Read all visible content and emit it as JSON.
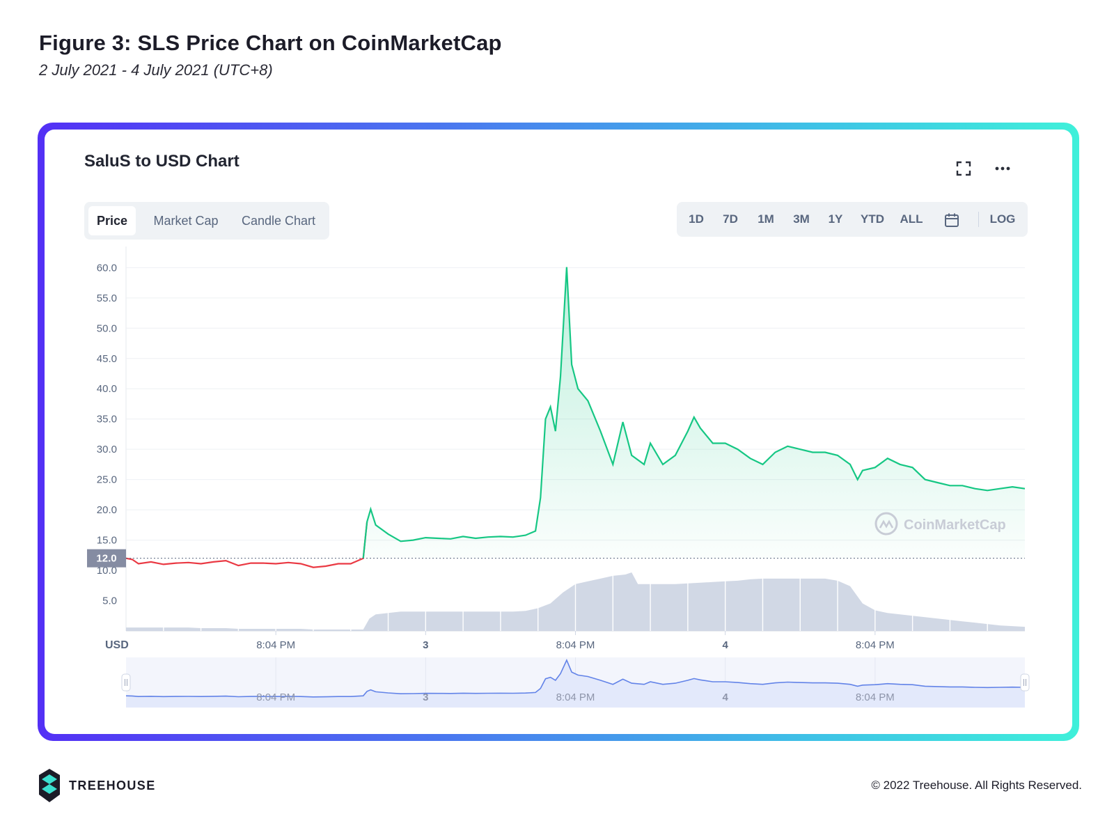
{
  "figure": {
    "title": "Figure 3: SLS Price Chart on CoinMarketCap",
    "subtitle": "2 July 2021 - 4 July 2021 (UTC+8)"
  },
  "card": {
    "title": "SaluS to USD Chart",
    "fullscreen_icon": "fullscreen-icon",
    "more_icon": "more-horizontal-icon"
  },
  "tabs": [
    {
      "label": "Price",
      "active": true
    },
    {
      "label": "Market Cap",
      "active": false
    },
    {
      "label": "Candle Chart",
      "active": false
    }
  ],
  "ranges": [
    "1D",
    "7D",
    "1M",
    "3M",
    "1Y",
    "YTD",
    "ALL"
  ],
  "calendar_icon": "calendar-icon",
  "log_label": "LOG",
  "watermark": "CoinMarketCap",
  "current_price_label": "12.0",
  "unit_label": "USD",
  "colors": {
    "up": "#16c784",
    "down": "#ea3943",
    "volume": "#cfd6e4",
    "navigator_line": "#6283e8",
    "navigator_fill": "#e3e9fb"
  },
  "chart_data": {
    "type": "line",
    "title": "SaluS to USD Chart",
    "ylabel": "USD",
    "ylim": [
      0,
      62
    ],
    "yticks": [
      5.0,
      10.0,
      15.0,
      20.0,
      25.0,
      30.0,
      35.0,
      40.0,
      45.0,
      50.0,
      55.0,
      60.0
    ],
    "xlim": [
      0,
      72
    ],
    "xticks": [
      {
        "x": 12,
        "label": "8:04 PM"
      },
      {
        "x": 24,
        "label": "3"
      },
      {
        "x": 36,
        "label": "8:04 PM"
      },
      {
        "x": 48,
        "label": "4"
      },
      {
        "x": 60,
        "label": "8:04 PM"
      }
    ],
    "reference_price": 12.0,
    "series": [
      {
        "values": [
          [
            0,
            12.0
          ],
          [
            0.5,
            11.8
          ],
          [
            1,
            11.1
          ],
          [
            2,
            11.4
          ],
          [
            3,
            11.0
          ],
          [
            4,
            11.2
          ],
          [
            5,
            11.3
          ],
          [
            6,
            11.1
          ],
          [
            7,
            11.4
          ],
          [
            8,
            11.6
          ],
          [
            9,
            10.8
          ],
          [
            10,
            11.2
          ],
          [
            11,
            11.2
          ],
          [
            12,
            11.1
          ],
          [
            13,
            11.3
          ],
          [
            14,
            11.1
          ],
          [
            15,
            10.5
          ],
          [
            16,
            10.7
          ],
          [
            17,
            11.1
          ],
          [
            18,
            11.1
          ],
          [
            19,
            12.0
          ],
          [
            19.3,
            18.0
          ],
          [
            19.6,
            20.1
          ],
          [
            20,
            17.5
          ],
          [
            21,
            16.0
          ],
          [
            22,
            14.8
          ],
          [
            23,
            15.0
          ],
          [
            24,
            15.4
          ],
          [
            25,
            15.3
          ],
          [
            26,
            15.2
          ],
          [
            27,
            15.6
          ],
          [
            28,
            15.3
          ],
          [
            29,
            15.5
          ],
          [
            30,
            15.6
          ],
          [
            31,
            15.5
          ],
          [
            32,
            15.8
          ],
          [
            32.8,
            16.5
          ],
          [
            33.2,
            22.0
          ],
          [
            33.6,
            35.0
          ],
          [
            34,
            37.0
          ],
          [
            34.4,
            33.0
          ],
          [
            34.8,
            42.0
          ],
          [
            35.3,
            60.1
          ],
          [
            35.7,
            44.0
          ],
          [
            36.2,
            40.0
          ],
          [
            37,
            38.0
          ],
          [
            38,
            33.0
          ],
          [
            39,
            27.5
          ],
          [
            39.8,
            34.5
          ],
          [
            40.5,
            29.0
          ],
          [
            41.5,
            27.5
          ],
          [
            42,
            31.0
          ],
          [
            43,
            27.5
          ],
          [
            44,
            29.0
          ],
          [
            45,
            33.0
          ],
          [
            45.5,
            35.3
          ],
          [
            46,
            33.5
          ],
          [
            47,
            31.0
          ],
          [
            48,
            31.0
          ],
          [
            49,
            30.0
          ],
          [
            50,
            28.5
          ],
          [
            51,
            27.5
          ],
          [
            52,
            29.5
          ],
          [
            53,
            30.5
          ],
          [
            54,
            30.0
          ],
          [
            55,
            29.5
          ],
          [
            56,
            29.5
          ],
          [
            57,
            29.0
          ],
          [
            58,
            27.5
          ],
          [
            58.6,
            25.0
          ],
          [
            59,
            26.5
          ],
          [
            60,
            27.0
          ],
          [
            61,
            28.5
          ],
          [
            62,
            27.5
          ],
          [
            63,
            27.0
          ],
          [
            64,
            25.0
          ],
          [
            65,
            24.5
          ],
          [
            66,
            24.0
          ],
          [
            67,
            24.0
          ],
          [
            68,
            23.5
          ],
          [
            69,
            23.2
          ],
          [
            70,
            23.5
          ],
          [
            71,
            23.8
          ],
          [
            72,
            23.5
          ]
        ]
      }
    ],
    "volume": {
      "values": [
        [
          0,
          0.5
        ],
        [
          1,
          0.5
        ],
        [
          2,
          0.5
        ],
        [
          3,
          0.5
        ],
        [
          4,
          0.5
        ],
        [
          5,
          0.5
        ],
        [
          6,
          0.4
        ],
        [
          7,
          0.4
        ],
        [
          8,
          0.4
        ],
        [
          9,
          0.3
        ],
        [
          10,
          0.3
        ],
        [
          11,
          0.3
        ],
        [
          12,
          0.3
        ],
        [
          13,
          0.3
        ],
        [
          14,
          0.3
        ],
        [
          15,
          0.2
        ],
        [
          16,
          0.2
        ],
        [
          17,
          0.2
        ],
        [
          18,
          0.2
        ],
        [
          19,
          0.2
        ],
        [
          19.5,
          1.8
        ],
        [
          20,
          2.4
        ],
        [
          21,
          2.6
        ],
        [
          22,
          2.8
        ],
        [
          23,
          2.8
        ],
        [
          24,
          2.8
        ],
        [
          25,
          2.8
        ],
        [
          26,
          2.8
        ],
        [
          27,
          2.8
        ],
        [
          28,
          2.8
        ],
        [
          29,
          2.8
        ],
        [
          30,
          2.8
        ],
        [
          31,
          2.8
        ],
        [
          32,
          2.9
        ],
        [
          33,
          3.3
        ],
        [
          34,
          4.0
        ],
        [
          35,
          5.6
        ],
        [
          36,
          6.8
        ],
        [
          37,
          7.2
        ],
        [
          38,
          7.6
        ],
        [
          39,
          8.0
        ],
        [
          40,
          8.2
        ],
        [
          40.5,
          8.5
        ],
        [
          41,
          6.8
        ],
        [
          42,
          6.8
        ],
        [
          43,
          6.8
        ],
        [
          44,
          6.8
        ],
        [
          45,
          6.9
        ],
        [
          46,
          7.0
        ],
        [
          47,
          7.1
        ],
        [
          48,
          7.2
        ],
        [
          49,
          7.3
        ],
        [
          50,
          7.5
        ],
        [
          51,
          7.6
        ],
        [
          52,
          7.6
        ],
        [
          53,
          7.6
        ],
        [
          54,
          7.6
        ],
        [
          55,
          7.6
        ],
        [
          56,
          7.6
        ],
        [
          57,
          7.3
        ],
        [
          58,
          6.5
        ],
        [
          59,
          4.0
        ],
        [
          60,
          3.0
        ],
        [
          61,
          2.6
        ],
        [
          62,
          2.4
        ],
        [
          63,
          2.2
        ],
        [
          64,
          2.0
        ],
        [
          65,
          1.8
        ],
        [
          66,
          1.6
        ],
        [
          67,
          1.4
        ],
        [
          68,
          1.2
        ],
        [
          69,
          1.0
        ],
        [
          70,
          0.8
        ],
        [
          71,
          0.7
        ],
        [
          72,
          0.6
        ]
      ]
    },
    "legend": "none",
    "grid": true
  }
}
